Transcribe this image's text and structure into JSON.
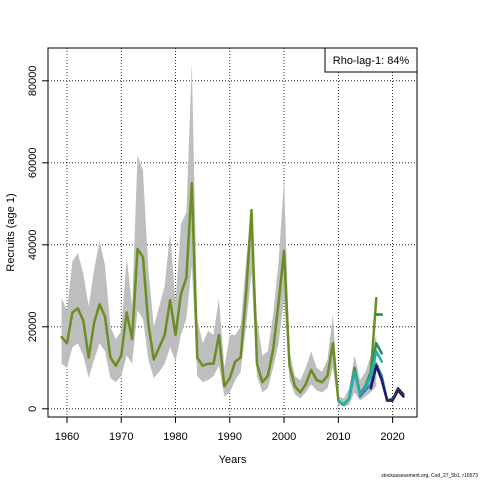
{
  "chart_data": {
    "type": "line",
    "title": "",
    "xlabel": "Years",
    "ylabel": "Recruits (age 1)",
    "xlim": [
      1956.5,
      2024.5
    ],
    "ylim": [
      -2000,
      88000
    ],
    "x_ticks": [
      1960,
      1970,
      1980,
      1990,
      2000,
      2010,
      2020
    ],
    "x_tick_labels": [
      "1960",
      "1970",
      "1980",
      "1990",
      "2000",
      "2010",
      "2020"
    ],
    "y_ticks": [
      0,
      20000,
      40000,
      60000,
      80000
    ],
    "y_tick_labels": [
      "0",
      "20000",
      "40000",
      "60000",
      "80000"
    ],
    "grid": true,
    "legend": {
      "position": "top-right",
      "text": "Rho-lag-1: 84%"
    },
    "footnote": "stockassessment.org, Cod_27_5b1, r16573",
    "confidence_band": {
      "color": "#bebebe",
      "x": [
        1959,
        1960,
        1961,
        1962,
        1963,
        1964,
        1965,
        1966,
        1967,
        1968,
        1969,
        1970,
        1971,
        1972,
        1973,
        1974,
        1975,
        1976,
        1977,
        1978,
        1979,
        1980,
        1981,
        1982,
        1983,
        1984,
        1985,
        1986,
        1987,
        1988,
        1989,
        1990,
        1991,
        1992,
        1993,
        1994,
        1995,
        1996,
        1997,
        1998,
        1999,
        2000,
        2001,
        2002,
        2003,
        2004,
        2005,
        2006,
        2007,
        2008,
        2009,
        2010,
        2011,
        2012,
        2013,
        2014,
        2015,
        2016,
        2017
      ],
      "lower": [
        11000,
        10000,
        15000,
        16000,
        13000,
        7500,
        12000,
        16000,
        14000,
        7500,
        6500,
        8000,
        13000,
        11000,
        24000,
        22000,
        12000,
        7500,
        9000,
        11000,
        15000,
        11500,
        18000,
        22000,
        35000,
        8000,
        6500,
        7000,
        8000,
        10500,
        3000,
        4000,
        7000,
        9000,
        20000,
        33000,
        8000,
        4000,
        5000,
        10000,
        16000,
        27000,
        7000,
        3500,
        2500,
        4000,
        6000,
        4500,
        4000,
        5000,
        10000,
        1000,
        500,
        1000,
        4000,
        2000,
        3000,
        4000,
        5500
      ],
      "upper": [
        27000,
        24000,
        36000,
        38000,
        33000,
        25000,
        34000,
        41000,
        35000,
        20000,
        17000,
        19000,
        37000,
        25000,
        62000,
        58000,
        34000,
        20000,
        25000,
        30000,
        43000,
        26000,
        45000,
        48000,
        84500,
        22000,
        16000,
        19000,
        18000,
        27000,
        10000,
        18000,
        18000,
        20000,
        36000,
        49000,
        22000,
        13000,
        14000,
        23000,
        36000,
        56000,
        14000,
        8000,
        7000,
        10000,
        14000,
        10000,
        9000,
        12000,
        23000,
        3000,
        2500,
        5000,
        13000,
        7000,
        9000,
        13000,
        18000
      ]
    },
    "series": [
      {
        "color": "#6b8e23",
        "x": [
          1959,
          1960,
          1961,
          1962,
          1963,
          1964,
          1965,
          1966,
          1967,
          1968,
          1969,
          1970,
          1971,
          1972,
          1973,
          1974,
          1975,
          1976,
          1977,
          1978,
          1979,
          1980,
          1981,
          1982,
          1983,
          1984,
          1985,
          1986,
          1987,
          1988,
          1989,
          1990,
          1991,
          1992,
          1993,
          1994,
          1995,
          1996,
          1997,
          1998,
          1999,
          2000,
          2001,
          2002,
          2003,
          2004,
          2005,
          2006,
          2007,
          2008,
          2009,
          2010,
          2011,
          2012,
          2013,
          2014,
          2015,
          2016,
          2017
        ],
        "values": [
          17500,
          16000,
          23500,
          24500,
          21500,
          12500,
          21000,
          25500,
          22500,
          12500,
          10500,
          13000,
          23500,
          17000,
          39000,
          37000,
          20500,
          12000,
          15000,
          18000,
          26500,
          18000,
          28000,
          32000,
          55000,
          12500,
          10500,
          11000,
          11000,
          18000,
          5500,
          7500,
          11500,
          12500,
          28000,
          48500,
          11000,
          6500,
          8000,
          14500,
          26000,
          38500,
          10500,
          5500,
          4000,
          6000,
          9500,
          7000,
          6500,
          8000,
          16000,
          2000,
          1000,
          2500,
          10000,
          3500,
          5500,
          9000,
          27000
        ]
      },
      {
        "color": "#228b22",
        "x": [
          2017,
          2018
        ],
        "values": [
          23000,
          23000
        ]
      },
      {
        "color": "#2e8b57",
        "x": [
          2010,
          2011,
          2012,
          2013,
          2014,
          2015,
          2016,
          2017,
          2018
        ],
        "values": [
          2000,
          1000,
          2500,
          9500,
          3500,
          5500,
          9000,
          16000,
          13500
        ]
      },
      {
        "color": "#20b2aa",
        "x": [
          2010,
          2011,
          2012,
          2013,
          2014,
          2015,
          2016,
          2017,
          2018
        ],
        "values": [
          2000,
          1000,
          2500,
          9000,
          3300,
          5200,
          8000,
          14000,
          11500
        ]
      },
      {
        "color": "#4682b4",
        "x": [
          2014,
          2015,
          2016,
          2017,
          2018,
          2019,
          2020
        ],
        "values": [
          3000,
          4500,
          6000,
          11000,
          8000,
          2000,
          2500
        ]
      },
      {
        "color": "#191970",
        "x": [
          2016,
          2017,
          2018,
          2019,
          2020,
          2021,
          2022
        ],
        "values": [
          5000,
          10500,
          7000,
          2000,
          2000,
          4500,
          3000
        ]
      },
      {
        "color": "#2f2f4f",
        "x": [
          2019,
          2020,
          2021,
          2022
        ],
        "values": [
          2000,
          2200,
          5000,
          3500
        ]
      }
    ]
  }
}
